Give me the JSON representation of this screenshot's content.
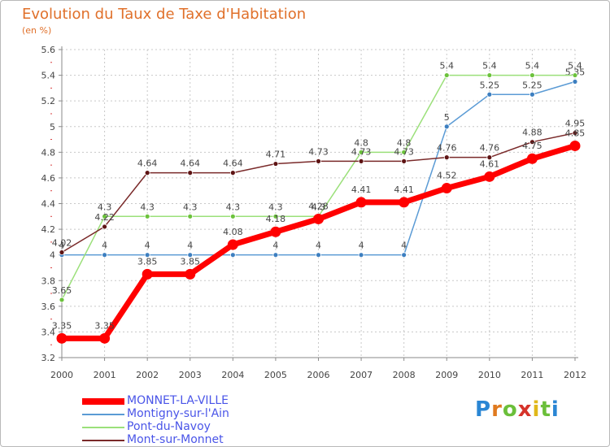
{
  "colors": {
    "title": "#e0702a",
    "axis": "#8a8a8a",
    "grid": "#c8c8c8",
    "tick_text": "#444444",
    "legend_text": "#4a55e8"
  },
  "brand": {
    "letters": [
      "P",
      "r",
      "o",
      "x",
      "i",
      "t",
      "i"
    ],
    "colors": [
      "#2a86d4",
      "#e07a1f",
      "#6bbf3a",
      "#d6332a",
      "#e0b81a",
      "#6bbf3a",
      "#2a86d4"
    ]
  },
  "chart_data": {
    "type": "line",
    "title": "Evolution du Taux de Taxe d'Habitation",
    "ylabel": "(en %)",
    "xlabel": "",
    "categories": [
      "2000",
      "2001",
      "2002",
      "2003",
      "2004",
      "2005",
      "2006",
      "2007",
      "2008",
      "2009",
      "2010",
      "2011",
      "2012"
    ],
    "ylim": [
      3.2,
      5.6
    ],
    "yticks": [
      "3.2",
      "3.4",
      "3.6",
      "3.8",
      "4",
      "4.2",
      "4.4",
      "4.6",
      "4.8",
      "5",
      "5.2",
      "5.4",
      "5.6"
    ],
    "grid": true,
    "legend_position": "bottom-left",
    "series": [
      {
        "name": "Montigny-sur-l'Ain",
        "color": "#5b9bd5",
        "marker": "#3d7fc0",
        "values": [
          4,
          4,
          4,
          4,
          4,
          4,
          4,
          4,
          4,
          5,
          5.25,
          5.25,
          5.35
        ],
        "labels": [
          "4",
          "4",
          "4",
          "4",
          "4",
          "4",
          "4",
          "4",
          "4",
          "5",
          "5.25",
          "5.25",
          "5.35"
        ]
      },
      {
        "name": "Pont-du-Navoy",
        "color": "#9be07a",
        "marker": "#6cc23c",
        "values": [
          3.65,
          4.3,
          4.3,
          4.3,
          4.3,
          4.3,
          4.3,
          4.8,
          4.8,
          5.4,
          5.4,
          5.4,
          5.4
        ],
        "labels": [
          "3.65",
          "4.3",
          "4.3",
          "4.3",
          "4.3",
          "4.3",
          "4.3",
          "4.8",
          "4.8",
          "5.4",
          "5.4",
          "5.4",
          "5.4"
        ]
      },
      {
        "name": "Mont-sur-Monnet",
        "color": "#7a2a2a",
        "marker": "#5e1414",
        "values": [
          4.02,
          4.22,
          4.64,
          4.64,
          4.64,
          4.71,
          4.73,
          4.73,
          4.73,
          4.76,
          4.76,
          4.88,
          4.95
        ],
        "labels": [
          "4.02",
          "4.22",
          "4.64",
          "4.64",
          "4.64",
          "4.71",
          "4.73",
          "4.73",
          "4.73",
          "4.76",
          "4.76",
          "4.88",
          "4.95"
        ]
      },
      {
        "name": "MONNET-LA-VILLE",
        "color": "#ff0000",
        "marker": "#ff0000",
        "values": [
          3.35,
          3.35,
          3.85,
          3.85,
          4.08,
          4.18,
          4.28,
          4.41,
          4.41,
          4.52,
          4.61,
          4.75,
          4.85
        ],
        "labels": [
          "3.35",
          "3.35",
          "3.85",
          "3.85",
          "4.08",
          "4.18",
          "4.28",
          "4.41",
          "4.41",
          "4.52",
          "4.61",
          "4.75",
          "4.85"
        ]
      }
    ],
    "legend_order": [
      "MONNET-LA-VILLE",
      "Montigny-sur-l'Ain",
      "Pont-du-Navoy",
      "Mont-sur-Monnet"
    ]
  }
}
